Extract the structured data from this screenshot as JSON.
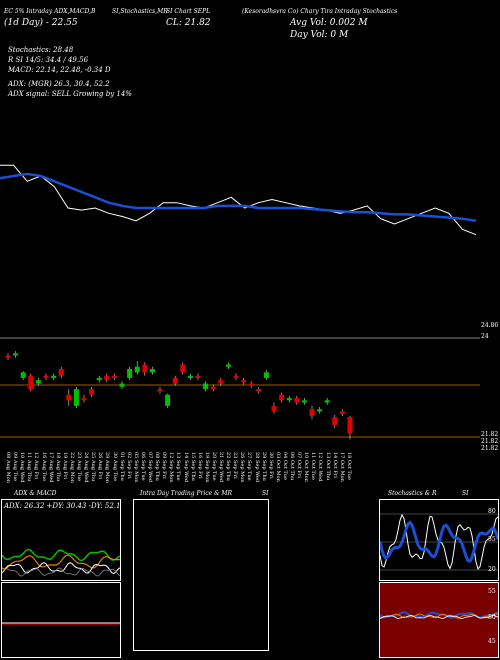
{
  "header": {
    "line1": "EC 5% Intraday ADX,MACD,B",
    "line1b": "SI,Stochastics,MR",
    "line1c": "SI Chart SEPL",
    "line1d": "(Kesoradhsvra Co) Chary Tira Intraday Stochastics",
    "line2": "(1d Day) - 22.55",
    "line2b": "CL: 21.82",
    "avg_vol": "Avg Vol: 0.002 M",
    "day_vol": "Day Vol: 0   M",
    "stoch": "Stochastics: 28.48",
    "stoch2": "R               SI 14/5: 34.4   / 49.56",
    "macd": "MACD: 22.14,  22.48, -0.34  D",
    "adx": "ADX:                              (MGR) 26.3,  30.4,  52.2",
    "adx2": "ADX  signal: SELL Growing by 14%"
  },
  "price_labels": {
    "upper_right": "24.86",
    "lower_top": "24",
    "lower_a": "21.82",
    "lower_b": "21.82",
    "lower_c": "21.82"
  },
  "date_labels": [
    "08 Aug Mon",
    "09 Aug Tue",
    "10 Aug Wed",
    "11 Aug Thu",
    "12 Aug Fri",
    "16 Aug Tue",
    "17 Aug Wed",
    "18 Aug Thu",
    "19 Aug Fri",
    "22 Aug Mon",
    "23 Aug Tue",
    "24 Aug Wed",
    "25 Aug Thu",
    "26 Aug Fri",
    "29 Aug Mon",
    "30 Aug Tue",
    "01 Sep Thu",
    "02 Sep Fri",
    "05 Sep Mon",
    "06 Sep Tue",
    "07 Sep Wed",
    "08 Sep Thu",
    "09 Sep Fri",
    "12 Sep Mon",
    "13 Sep Tue",
    "14 Sep Wed",
    "15 Sep Thu",
    "16 Sep Fri",
    "19 Sep Mon",
    "20 Sep Tue",
    "21 Sep Wed",
    "22 Sep Thu",
    "23 Sep Fri",
    "26 Sep Mon",
    "27 Sep Tue",
    "28 Sep Wed",
    "29 Sep Thu",
    "30 Sep Fri",
    "03 Oct Mon",
    "04 Oct Tue",
    "06 Oct Thu",
    "07 Oct Fri",
    "10 Oct Mon",
    "11 Oct Tue",
    "12 Oct Wed",
    "13 Oct Thu",
    "14 Oct Fri",
    "17 Oct Mon",
    "18 Oct Tue"
  ],
  "panels": {
    "adx": {
      "title": "ADX  & MACD",
      "readout": "ADX: 26.32  +DY: 30.43 -DY: 52.17"
    },
    "intra": {
      "title": "Intra  Day Trading Price  & MR",
      "title_b": "SI"
    },
    "stoch": {
      "title": "Stochastics & R",
      "title_b": "SI",
      "ticks": [
        "80",
        "55",
        "20"
      ],
      "ticks2": [
        "55",
        "50",
        "45"
      ]
    }
  },
  "colors": {
    "bg": "#000000",
    "ma": "#1a4fd6",
    "price": "#ffffff",
    "up": "#00c000",
    "down": "#e00000",
    "band": "#7a0000",
    "hline": "#a05a00"
  },
  "chart_data": {
    "type": "line",
    "price": [
      22.9,
      22.9,
      22.75,
      22.8,
      22.7,
      22.5,
      22.48,
      22.5,
      22.45,
      22.42,
      22.38,
      22.45,
      22.55,
      22.55,
      22.52,
      22.5,
      22.55,
      22.6,
      22.5,
      22.55,
      22.58,
      22.55,
      22.52,
      22.5,
      22.48,
      22.45,
      22.48,
      22.52,
      22.4,
      22.35,
      22.4,
      22.45,
      22.5,
      22.45,
      22.3,
      22.25
    ],
    "ma": [
      22.78,
      22.8,
      22.82,
      22.8,
      22.75,
      22.7,
      22.65,
      22.6,
      22.55,
      22.52,
      22.5,
      22.5,
      22.5,
      22.5,
      22.5,
      22.5,
      22.52,
      22.52,
      22.52,
      22.5,
      22.5,
      22.5,
      22.5,
      22.49,
      22.48,
      22.47,
      22.46,
      22.46,
      22.45,
      22.44,
      22.44,
      22.43,
      22.42,
      22.41,
      22.4,
      22.38
    ],
    "candles": [
      {
        "o": 22.9,
        "c": 22.88,
        "h": 22.92,
        "l": 22.86
      },
      {
        "o": 22.9,
        "c": 22.92,
        "h": 22.94,
        "l": 22.88
      },
      {
        "o": 22.7,
        "c": 22.75,
        "h": 22.76,
        "l": 22.68
      },
      {
        "o": 22.72,
        "c": 22.6,
        "h": 22.74,
        "l": 22.58
      },
      {
        "o": 22.65,
        "c": 22.68,
        "h": 22.7,
        "l": 22.63
      },
      {
        "o": 22.72,
        "c": 22.7,
        "h": 22.74,
        "l": 22.68
      },
      {
        "o": 22.7,
        "c": 22.72,
        "h": 22.74,
        "l": 22.68
      },
      {
        "o": 22.78,
        "c": 22.72,
        "h": 22.8,
        "l": 22.7
      },
      {
        "o": 22.55,
        "c": 22.5,
        "h": 22.6,
        "l": 22.45
      },
      {
        "o": 22.45,
        "c": 22.6,
        "h": 22.62,
        "l": 22.43
      },
      {
        "o": 22.52,
        "c": 22.5,
        "h": 22.55,
        "l": 22.48
      },
      {
        "o": 22.6,
        "c": 22.55,
        "h": 22.62,
        "l": 22.53
      },
      {
        "o": 22.68,
        "c": 22.7,
        "h": 22.72,
        "l": 22.66
      },
      {
        "o": 22.72,
        "c": 22.68,
        "h": 22.74,
        "l": 22.66
      },
      {
        "o": 22.72,
        "c": 22.7,
        "h": 22.74,
        "l": 22.68
      },
      {
        "o": 22.62,
        "c": 22.65,
        "h": 22.67,
        "l": 22.6
      },
      {
        "o": 22.7,
        "c": 22.78,
        "h": 22.8,
        "l": 22.68
      },
      {
        "o": 22.75,
        "c": 22.8,
        "h": 22.85,
        "l": 22.73
      },
      {
        "o": 22.82,
        "c": 22.75,
        "h": 22.84,
        "l": 22.72
      },
      {
        "o": 22.75,
        "c": 22.78,
        "h": 22.8,
        "l": 22.73
      },
      {
        "o": 22.6,
        "c": 22.58,
        "h": 22.62,
        "l": 22.56
      },
      {
        "o": 22.45,
        "c": 22.55,
        "h": 22.56,
        "l": 22.43
      },
      {
        "o": 22.7,
        "c": 22.65,
        "h": 22.72,
        "l": 22.63
      },
      {
        "o": 22.82,
        "c": 22.75,
        "h": 22.84,
        "l": 22.73
      },
      {
        "o": 22.7,
        "c": 22.72,
        "h": 22.74,
        "l": 22.68
      },
      {
        "o": 22.72,
        "c": 22.7,
        "h": 22.74,
        "l": 22.68
      },
      {
        "o": 22.6,
        "c": 22.65,
        "h": 22.67,
        "l": 22.58
      },
      {
        "o": 22.62,
        "c": 22.6,
        "h": 22.64,
        "l": 22.58
      },
      {
        "o": 22.68,
        "c": 22.65,
        "h": 22.7,
        "l": 22.63
      },
      {
        "o": 22.8,
        "c": 22.82,
        "h": 22.84,
        "l": 22.78
      },
      {
        "o": 22.72,
        "c": 22.7,
        "h": 22.74,
        "l": 22.68
      },
      {
        "o": 22.68,
        "c": 22.66,
        "h": 22.7,
        "l": 22.64
      },
      {
        "o": 22.65,
        "c": 22.63,
        "h": 22.67,
        "l": 22.61
      },
      {
        "o": 22.6,
        "c": 22.58,
        "h": 22.62,
        "l": 22.56
      },
      {
        "o": 22.7,
        "c": 22.75,
        "h": 22.77,
        "l": 22.68
      },
      {
        "o": 22.45,
        "c": 22.4,
        "h": 22.48,
        "l": 22.38
      },
      {
        "o": 22.55,
        "c": 22.5,
        "h": 22.57,
        "l": 22.48
      },
      {
        "o": 22.5,
        "c": 22.52,
        "h": 22.54,
        "l": 22.48
      },
      {
        "o": 22.52,
        "c": 22.48,
        "h": 22.54,
        "l": 22.46
      },
      {
        "o": 22.48,
        "c": 22.5,
        "h": 22.52,
        "l": 22.46
      },
      {
        "o": 22.42,
        "c": 22.36,
        "h": 22.45,
        "l": 22.33
      },
      {
        "o": 22.4,
        "c": 22.42,
        "h": 22.44,
        "l": 22.38
      },
      {
        "o": 22.48,
        "c": 22.5,
        "h": 22.52,
        "l": 22.46
      },
      {
        "o": 22.35,
        "c": 22.28,
        "h": 22.37,
        "l": 22.25
      },
      {
        "o": 22.4,
        "c": 22.38,
        "h": 22.42,
        "l": 22.36
      },
      {
        "o": 22.35,
        "c": 22.2,
        "h": 22.36,
        "l": 22.15
      }
    ]
  }
}
